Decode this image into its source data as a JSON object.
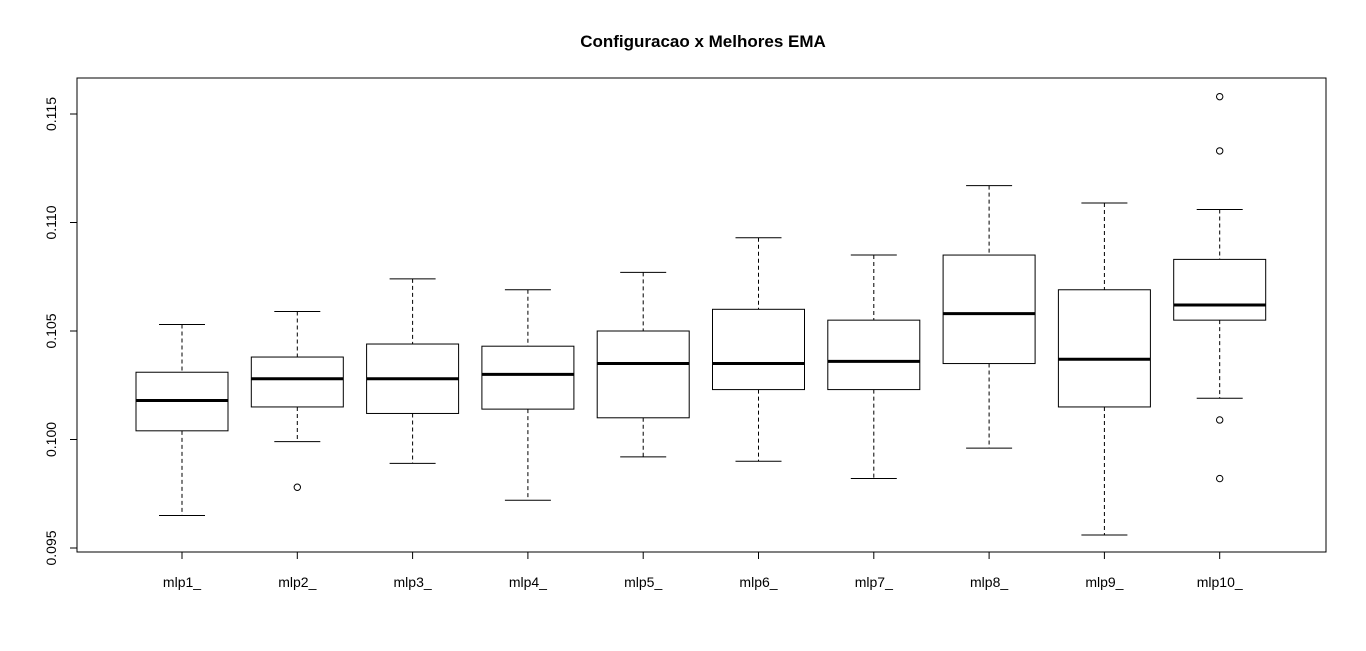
{
  "chart_data": {
    "type": "boxplot",
    "title": "Configuracao x Melhores EMA",
    "xlabel": "",
    "ylabel": "",
    "ylim": [
      0.0948,
      0.1168
    ],
    "yticks": [
      "0.095",
      "0.100",
      "0.105",
      "0.110",
      "0.115"
    ],
    "grid": false,
    "categories": [
      "mlp1_",
      "mlp2_",
      "mlp3_",
      "mlp4_",
      "mlp5_",
      "mlp6_",
      "mlp7_",
      "mlp8_",
      "mlp9_",
      "mlp10_"
    ],
    "boxes": [
      {
        "lower_whisker": 0.0965,
        "q1": 0.1004,
        "median": 0.1018,
        "q3": 0.1031,
        "upper_whisker": 0.1053,
        "outliers": []
      },
      {
        "lower_whisker": 0.0999,
        "q1": 0.1015,
        "median": 0.1028,
        "q3": 0.1038,
        "upper_whisker": 0.1059,
        "outliers": [
          0.0978
        ]
      },
      {
        "lower_whisker": 0.0989,
        "q1": 0.1012,
        "median": 0.1028,
        "q3": 0.1044,
        "upper_whisker": 0.1074,
        "outliers": []
      },
      {
        "lower_whisker": 0.0972,
        "q1": 0.1014,
        "median": 0.103,
        "q3": 0.1043,
        "upper_whisker": 0.1069,
        "outliers": []
      },
      {
        "lower_whisker": 0.0992,
        "q1": 0.101,
        "median": 0.1035,
        "q3": 0.105,
        "upper_whisker": 0.1077,
        "outliers": []
      },
      {
        "lower_whisker": 0.099,
        "q1": 0.1023,
        "median": 0.1035,
        "q3": 0.106,
        "upper_whisker": 0.1093,
        "outliers": []
      },
      {
        "lower_whisker": 0.0982,
        "q1": 0.1023,
        "median": 0.1036,
        "q3": 0.1055,
        "upper_whisker": 0.1085,
        "outliers": []
      },
      {
        "lower_whisker": 0.0996,
        "q1": 0.1035,
        "median": 0.1058,
        "q3": 0.1085,
        "upper_whisker": 0.1117,
        "outliers": []
      },
      {
        "lower_whisker": 0.0956,
        "q1": 0.1015,
        "median": 0.1037,
        "q3": 0.1069,
        "upper_whisker": 0.1109,
        "outliers": []
      },
      {
        "lower_whisker": 0.1019,
        "q1": 0.1055,
        "median": 0.1062,
        "q3": 0.1083,
        "upper_whisker": 0.1106,
        "outliers": [
          0.1158,
          0.1133,
          0.1009,
          0.0982
        ]
      }
    ]
  }
}
